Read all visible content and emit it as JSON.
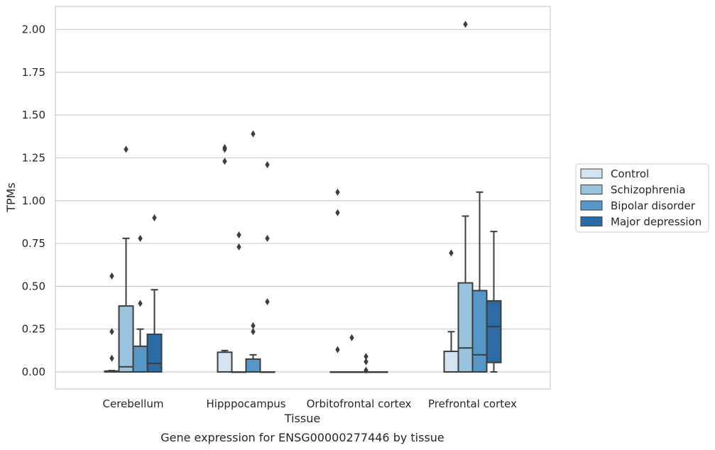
{
  "caption": "Gene expression for ENSG00000277446 by tissue",
  "chart_data": {
    "type": "box",
    "xlabel": "Tissue",
    "ylabel": "TPMs",
    "ylim": [
      -0.1,
      2.14
    ],
    "yticks": [
      "0.00",
      "0.25",
      "0.50",
      "0.75",
      "1.00",
      "1.25",
      "1.50",
      "1.75",
      "2.00"
    ],
    "ytick_values": [
      0,
      0.25,
      0.5,
      0.75,
      1.0,
      1.25,
      1.5,
      1.75,
      2.0
    ],
    "grid": "horizontal",
    "legend_position": "right",
    "categories": [
      "Cerebellum",
      "Hipppocampus",
      "Orbitofrontal cortex",
      "Prefrontal cortex"
    ],
    "series": [
      {
        "name": "Control",
        "color": "#d3e3f1",
        "boxes": [
          {
            "q1": 0,
            "median": 0,
            "q3": 0.005,
            "whisker_low": 0,
            "whisker_high": 0.008,
            "outliers": [
              0.56,
              0.235,
              0.08
            ]
          },
          {
            "q1": 0,
            "median": 0,
            "q3": 0.115,
            "whisker_low": 0,
            "whisker_high": 0.125,
            "outliers": [
              1.31,
              1.3,
              1.23
            ]
          },
          {
            "q1": 0,
            "median": 0,
            "q3": 0,
            "whisker_low": 0,
            "whisker_high": 0,
            "outliers": [
              1.05,
              0.93,
              0.13
            ]
          },
          {
            "q1": 0,
            "median": 0,
            "q3": 0.12,
            "whisker_low": 0,
            "whisker_high": 0.235,
            "outliers": [
              0.695
            ]
          }
        ]
      },
      {
        "name": "Schizophrenia",
        "color": "#9ac4de",
        "boxes": [
          {
            "q1": 0,
            "median": 0.03,
            "q3": 0.385,
            "whisker_low": 0,
            "whisker_high": 0.78,
            "outliers": [
              1.3
            ]
          },
          {
            "q1": 0,
            "median": 0,
            "q3": 0,
            "whisker_low": 0,
            "whisker_high": 0,
            "outliers": [
              0.8,
              0.73
            ]
          },
          {
            "q1": 0,
            "median": 0,
            "q3": 0,
            "whisker_low": 0,
            "whisker_high": 0,
            "outliers": [
              0.2
            ]
          },
          {
            "q1": 0,
            "median": 0.14,
            "q3": 0.52,
            "whisker_low": 0,
            "whisker_high": 0.91,
            "outliers": [
              2.03
            ]
          }
        ]
      },
      {
        "name": "Bipolar disorder",
        "color": "#5697c7",
        "boxes": [
          {
            "q1": 0,
            "median": 0,
            "q3": 0.15,
            "whisker_low": 0,
            "whisker_high": 0.25,
            "outliers": [
              0.78,
              0.4
            ]
          },
          {
            "q1": 0,
            "median": 0,
            "q3": 0.075,
            "whisker_low": 0,
            "whisker_high": 0.1,
            "outliers": [
              1.39,
              0.27,
              0.235
            ]
          },
          {
            "q1": 0,
            "median": 0,
            "q3": 0,
            "whisker_low": 0,
            "whisker_high": 0,
            "outliers": [
              0.09,
              0.06,
              0.01
            ]
          },
          {
            "q1": 0,
            "median": 0.1,
            "q3": 0.475,
            "whisker_low": 0,
            "whisker_high": 1.05,
            "outliers": []
          }
        ]
      },
      {
        "name": "Major depression",
        "color": "#2b6aa5",
        "boxes": [
          {
            "q1": 0,
            "median": 0.05,
            "q3": 0.22,
            "whisker_low": 0,
            "whisker_high": 0.48,
            "outliers": [
              0.9
            ]
          },
          {
            "q1": 0,
            "median": 0,
            "q3": 0,
            "whisker_low": 0,
            "whisker_high": 0,
            "outliers": [
              1.21,
              0.78,
              0.41
            ]
          },
          {
            "q1": 0,
            "median": 0,
            "q3": 0,
            "whisker_low": 0,
            "whisker_high": 0,
            "outliers": []
          },
          {
            "q1": 0.055,
            "median": 0.265,
            "q3": 0.415,
            "whisker_low": 0,
            "whisker_high": 0.82,
            "outliers": []
          }
        ]
      }
    ]
  }
}
